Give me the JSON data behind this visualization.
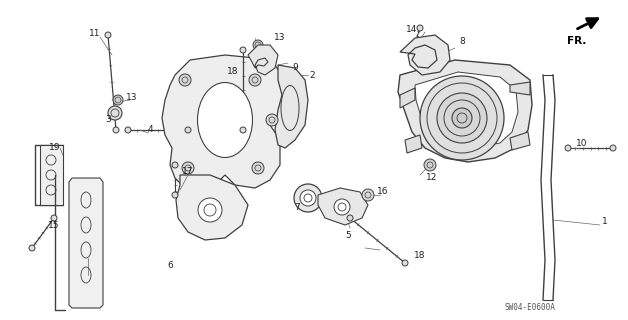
{
  "bg_color": "#ffffff",
  "line_color": "#404040",
  "label_color": "#222222",
  "font_size": 6.5,
  "diagram_code": "SW04-E0600A",
  "figsize": [
    6.28,
    3.2
  ],
  "dpi": 100
}
